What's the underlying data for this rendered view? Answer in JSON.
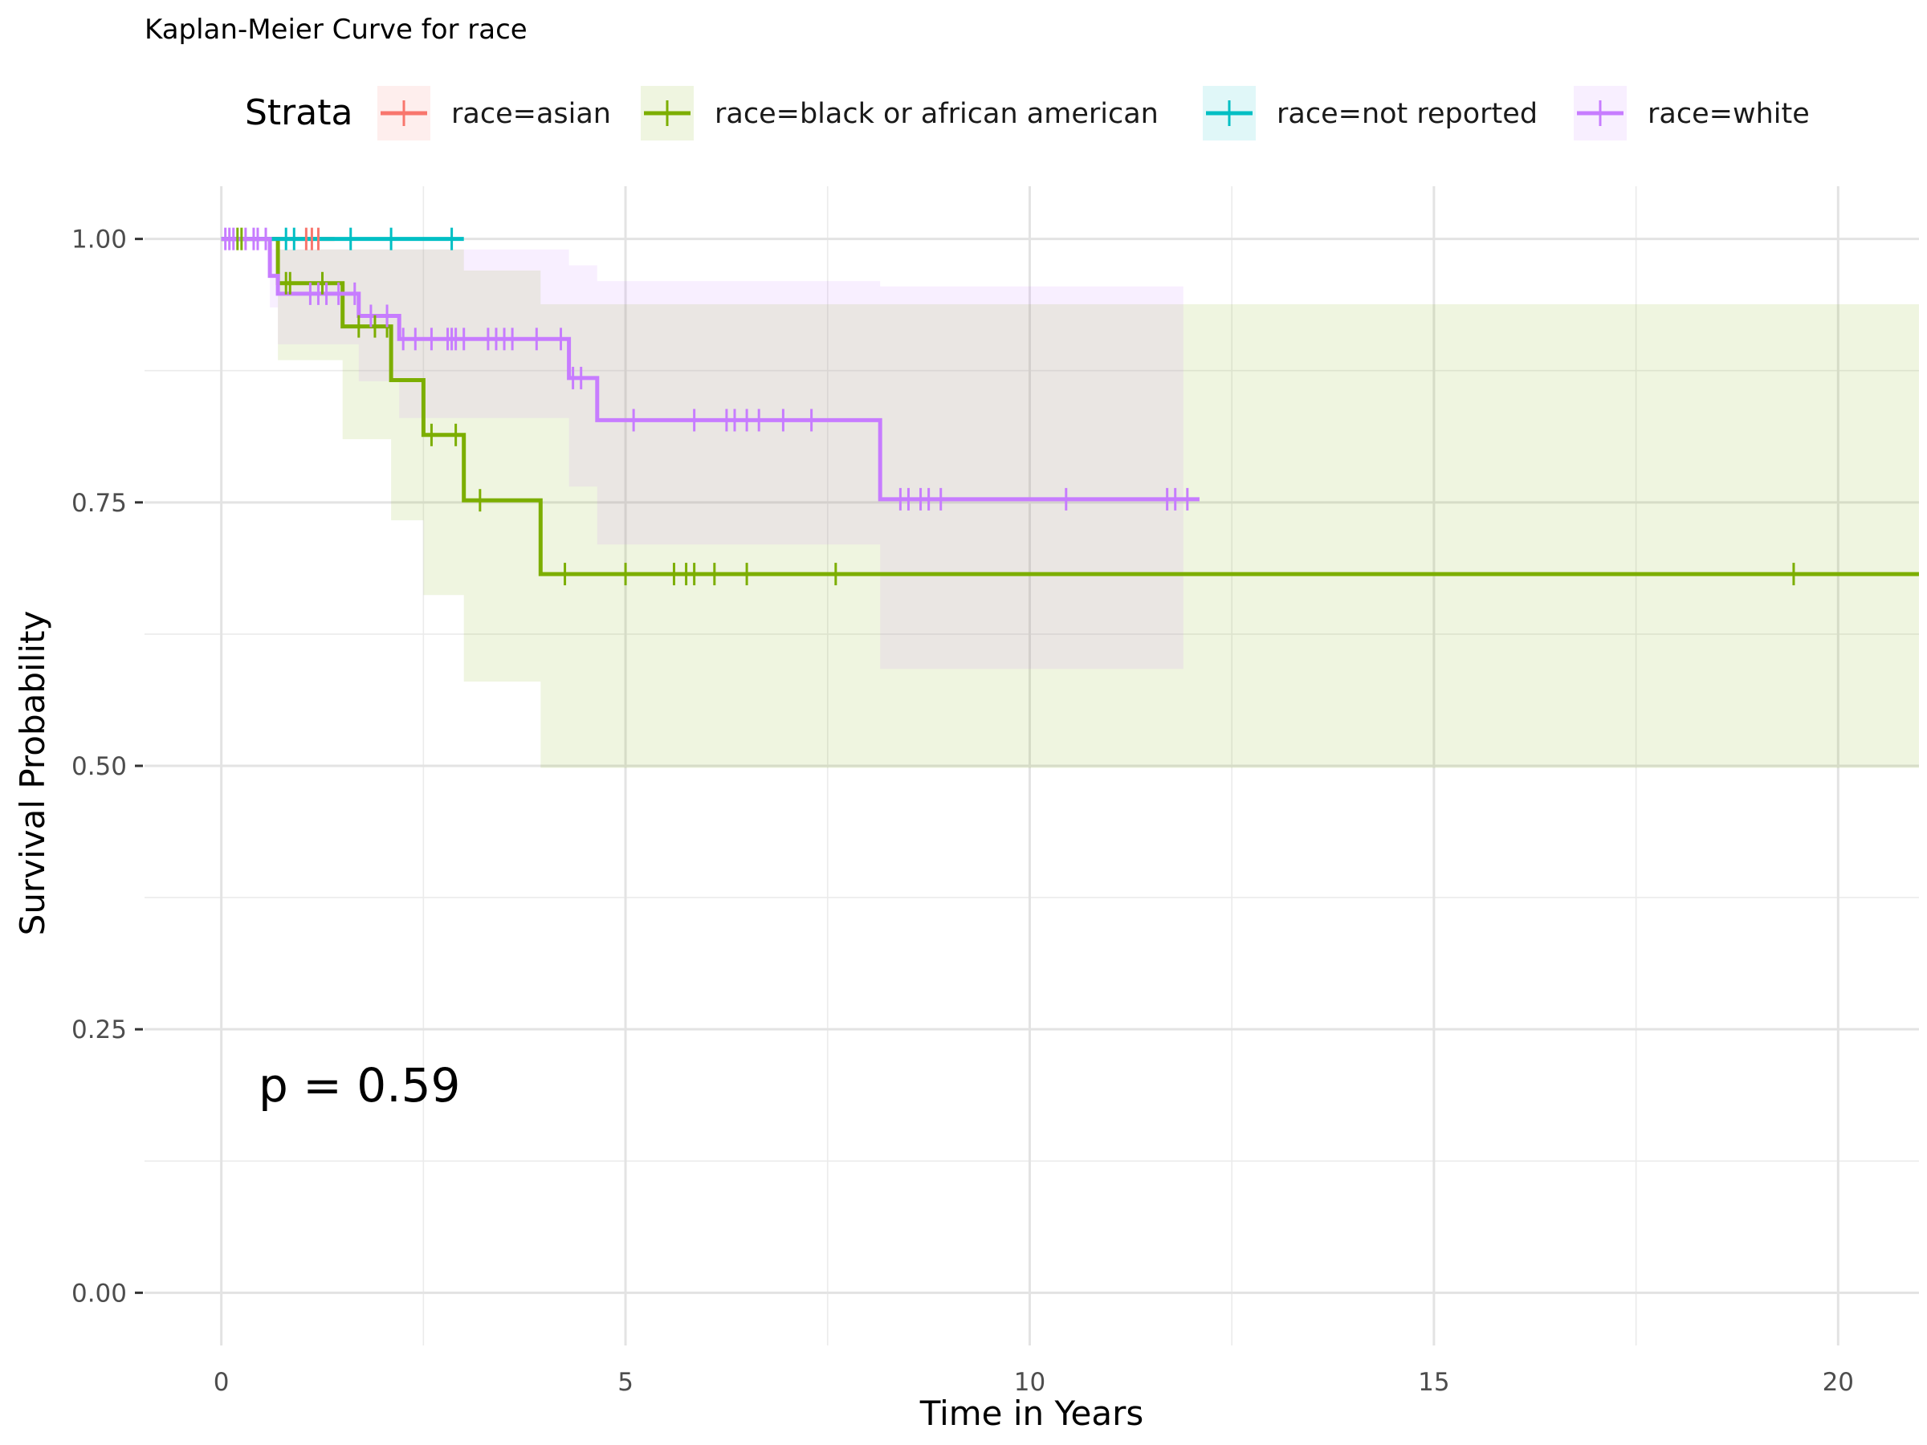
{
  "chart_data": {
    "type": "line",
    "title": "Kaplan-Meier Curve for race",
    "xlabel": "Time in Years",
    "ylabel": "Survival Probability",
    "xlim": [
      -0.95,
      21.0
    ],
    "ylim": [
      -0.05,
      1.05
    ],
    "x_ticks": [
      0,
      5,
      10,
      15,
      20
    ],
    "x_tick_labels": [
      "0",
      "5",
      "10",
      "15",
      "20"
    ],
    "y_ticks": [
      0,
      0.25,
      0.5,
      0.75,
      1.0
    ],
    "y_tick_labels": [
      "0.00",
      "0.25",
      "0.50",
      "0.75",
      "1.00"
    ],
    "grid": true,
    "legend": {
      "title": "Strata",
      "position": "top"
    },
    "annotation": "p = 0.59",
    "series": [
      {
        "name": "race=asian",
        "color": "#F8766D",
        "steps": [
          [
            0,
            1.0
          ],
          [
            1.4,
            1.0
          ]
        ],
        "censor": [
          1.05,
          1.12,
          1.2
        ],
        "ci": []
      },
      {
        "name": "race=black or african american",
        "color": "#7CAE00",
        "steps": [
          [
            0,
            1.0
          ],
          [
            0.7,
            0.958
          ],
          [
            1.5,
            0.917
          ],
          [
            2.1,
            0.866
          ],
          [
            2.5,
            0.814
          ],
          [
            3.0,
            0.752
          ],
          [
            3.95,
            0.682
          ],
          [
            21.0,
            0.682
          ]
        ],
        "censor": [
          0.2,
          0.25,
          0.8,
          0.85,
          1.25,
          1.7,
          1.9,
          2.05,
          2.6,
          2.9,
          3.2,
          4.25,
          5.0,
          5.6,
          5.75,
          5.85,
          6.1,
          6.5,
          7.6,
          19.45
        ],
        "ci": [
          [
            0,
            1.0,
            1.0
          ],
          [
            0.7,
            0.99,
            0.885
          ],
          [
            1.5,
            0.99,
            0.81
          ],
          [
            2.1,
            0.99,
            0.733
          ],
          [
            2.5,
            0.99,
            0.662
          ],
          [
            3.0,
            0.97,
            0.58
          ],
          [
            3.95,
            0.938,
            0.498
          ],
          [
            21.0,
            0.938,
            0.498
          ]
        ]
      },
      {
        "name": "race=not reported",
        "color": "#00BFC4",
        "steps": [
          [
            0,
            1.0
          ],
          [
            3.0,
            1.0
          ]
        ],
        "censor": [
          0.8,
          0.9,
          1.6,
          2.1,
          2.85
        ],
        "ci": []
      },
      {
        "name": "race=white",
        "color": "#C77CFF",
        "steps": [
          [
            0,
            1.0
          ],
          [
            0.6,
            0.965
          ],
          [
            0.7,
            0.948
          ],
          [
            1.7,
            0.927
          ],
          [
            2.2,
            0.905
          ],
          [
            4.3,
            0.868
          ],
          [
            4.65,
            0.828
          ],
          [
            8.15,
            0.753
          ],
          [
            12.1,
            0.753
          ]
        ],
        "censor": [
          0.05,
          0.1,
          0.15,
          0.3,
          0.4,
          0.45,
          0.55,
          1.1,
          1.2,
          1.3,
          1.45,
          1.65,
          1.85,
          2.05,
          2.25,
          2.4,
          2.6,
          2.8,
          2.85,
          2.9,
          3.0,
          3.3,
          3.4,
          3.5,
          3.6,
          3.9,
          4.2,
          4.35,
          4.45,
          5.1,
          5.85,
          6.25,
          6.35,
          6.5,
          6.65,
          6.95,
          7.3,
          8.4,
          8.5,
          8.65,
          8.75,
          8.9,
          10.45,
          11.7,
          11.8,
          11.95
        ],
        "ci": [
          [
            0,
            1.0,
            1.0
          ],
          [
            0.6,
            0.99,
            0.935
          ],
          [
            0.7,
            0.99,
            0.9
          ],
          [
            1.7,
            0.99,
            0.865
          ],
          [
            2.2,
            0.99,
            0.83
          ],
          [
            3.0,
            0.99,
            0.83
          ],
          [
            3.3,
            0.99,
            0.83
          ],
          [
            4.3,
            0.975,
            0.765
          ],
          [
            4.65,
            0.96,
            0.71
          ],
          [
            8.15,
            0.955,
            0.592
          ],
          [
            11.9,
            0.955,
            0.592
          ]
        ]
      }
    ]
  }
}
